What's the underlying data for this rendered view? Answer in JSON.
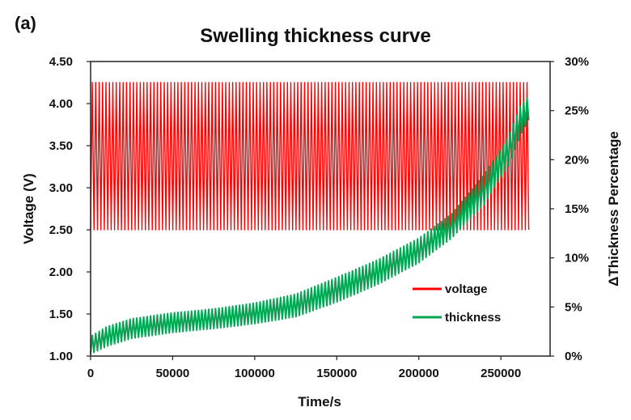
{
  "panel_label": "(a)",
  "chart_data": {
    "type": "line",
    "title": "Swelling thickness curve",
    "xlabel": "Time/s",
    "ylabel_left": "Voltage  (V)",
    "ylabel_right": "ΔThickness  Percentage",
    "xlim": [
      0,
      280000
    ],
    "ylim_left": [
      1.0,
      4.5
    ],
    "ylim_right": [
      0,
      30
    ],
    "x_ticks": [
      "0",
      "50000",
      "100000",
      "150000",
      "200000",
      "250000"
    ],
    "x_tick_values": [
      0,
      50000,
      100000,
      150000,
      200000,
      250000
    ],
    "y_left_ticks": [
      "1.00",
      "1.50",
      "2.00",
      "2.50",
      "3.00",
      "3.50",
      "4.00",
      "4.50"
    ],
    "y_left_tick_values": [
      1.0,
      1.5,
      2.0,
      2.5,
      3.0,
      3.5,
      4.0,
      4.5
    ],
    "y_right_ticks": [
      "0%",
      "5%",
      "10%",
      "15%",
      "20%",
      "25%",
      "30%"
    ],
    "y_right_tick_values": [
      0,
      5,
      10,
      15,
      20,
      25,
      30
    ],
    "grid": false,
    "legend_position": "bottom-right",
    "series": [
      {
        "name": "voltage",
        "axis": "left",
        "color": "#ff0000",
        "style": "oscillating",
        "cycles": 128,
        "x_start": 0,
        "x_end": 267000,
        "min": 2.5,
        "max": 4.25
      },
      {
        "name": "thickness",
        "axis": "right",
        "color": "#00a651",
        "style": "oscillating-envelope",
        "cycles": 128,
        "x_start": 0,
        "x_end": 267000,
        "upper_envelope": [
          [
            0,
            2.0
          ],
          [
            10000,
            3.0
          ],
          [
            25000,
            3.8
          ],
          [
            50000,
            4.4
          ],
          [
            75000,
            4.8
          ],
          [
            100000,
            5.4
          ],
          [
            125000,
            6.3
          ],
          [
            150000,
            8.0
          ],
          [
            175000,
            9.8
          ],
          [
            200000,
            12.0
          ],
          [
            220000,
            14.5
          ],
          [
            240000,
            18.5
          ],
          [
            255000,
            22.5
          ],
          [
            262000,
            25.5
          ],
          [
            267000,
            26.5
          ]
        ],
        "lower_envelope": [
          [
            0,
            0.2
          ],
          [
            10000,
            1.0
          ],
          [
            25000,
            1.8
          ],
          [
            50000,
            2.4
          ],
          [
            75000,
            2.8
          ],
          [
            100000,
            3.3
          ],
          [
            125000,
            4.0
          ],
          [
            150000,
            5.5
          ],
          [
            175000,
            7.3
          ],
          [
            200000,
            9.5
          ],
          [
            220000,
            12.0
          ],
          [
            240000,
            15.5
          ],
          [
            255000,
            19.5
          ],
          [
            262000,
            22.5
          ],
          [
            267000,
            24.0
          ]
        ]
      }
    ]
  }
}
